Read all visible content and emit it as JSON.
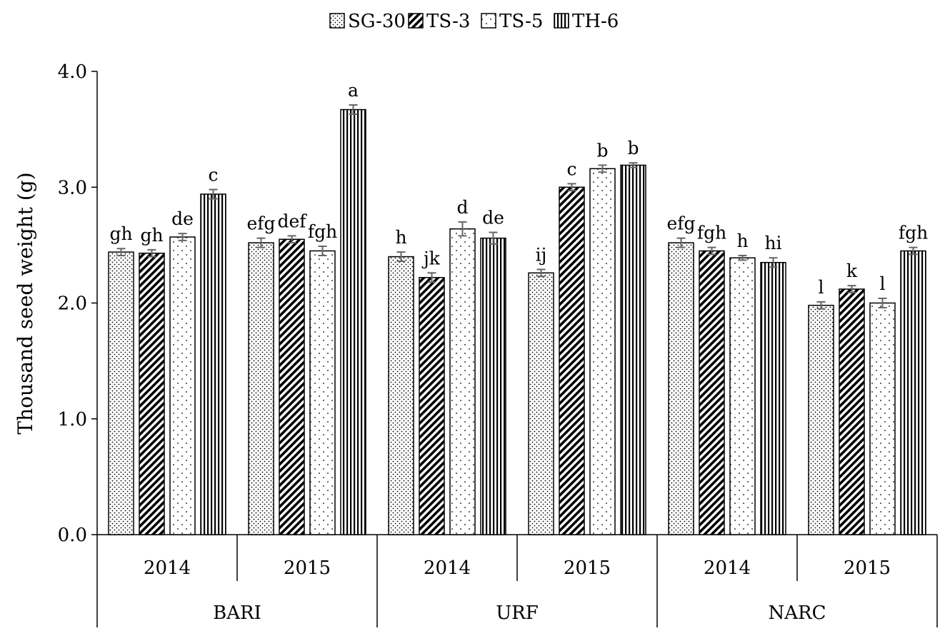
{
  "chart_data": {
    "type": "bar",
    "title": "",
    "ylabel": "Thousand seed weight (g)",
    "xlabel": "",
    "ylim": [
      0,
      4
    ],
    "yticks": [
      "0.0",
      "1.0",
      "2.0",
      "3.0",
      "4.0"
    ],
    "legend_position": "top-center",
    "grid": false,
    "groups": [
      {
        "name": "BARI",
        "years": [
          "2014",
          "2015"
        ]
      },
      {
        "name": "URF",
        "years": [
          "2014",
          "2015"
        ]
      },
      {
        "name": "NARC",
        "years": [
          "2014",
          "2015"
        ]
      }
    ],
    "categories": [
      "BARI 2014",
      "BARI 2015",
      "URF 2014",
      "URF 2015",
      "NARC 2014",
      "NARC 2015"
    ],
    "series": [
      {
        "name": "SG-30",
        "pattern": "dots-dense",
        "values": [
          2.44,
          2.52,
          2.4,
          2.26,
          2.52,
          1.98
        ],
        "errors": [
          0.03,
          0.04,
          0.04,
          0.03,
          0.04,
          0.03
        ],
        "letters": [
          "gh",
          "efg",
          "h",
          "ij",
          "efg",
          "l"
        ]
      },
      {
        "name": "TS-3",
        "pattern": "diagonal",
        "values": [
          2.43,
          2.55,
          2.22,
          3.0,
          2.45,
          2.12
        ],
        "errors": [
          0.03,
          0.03,
          0.04,
          0.03,
          0.03,
          0.03
        ],
        "letters": [
          "gh",
          "def",
          "jk",
          "c",
          "fgh",
          "k"
        ]
      },
      {
        "name": "TS-5",
        "pattern": "dots-sparse",
        "values": [
          2.57,
          2.45,
          2.64,
          3.16,
          2.39,
          2.0
        ],
        "errors": [
          0.03,
          0.04,
          0.06,
          0.03,
          0.02,
          0.04
        ],
        "letters": [
          "de",
          "fgh",
          "d",
          "b",
          "h",
          "l"
        ]
      },
      {
        "name": "TH-6",
        "pattern": "vertical",
        "values": [
          2.94,
          3.67,
          2.56,
          3.19,
          2.35,
          2.45
        ],
        "errors": [
          0.04,
          0.04,
          0.05,
          0.02,
          0.04,
          0.03
        ],
        "letters": [
          "c",
          "a",
          "de",
          "b",
          "hi",
          "fgh"
        ]
      }
    ]
  }
}
